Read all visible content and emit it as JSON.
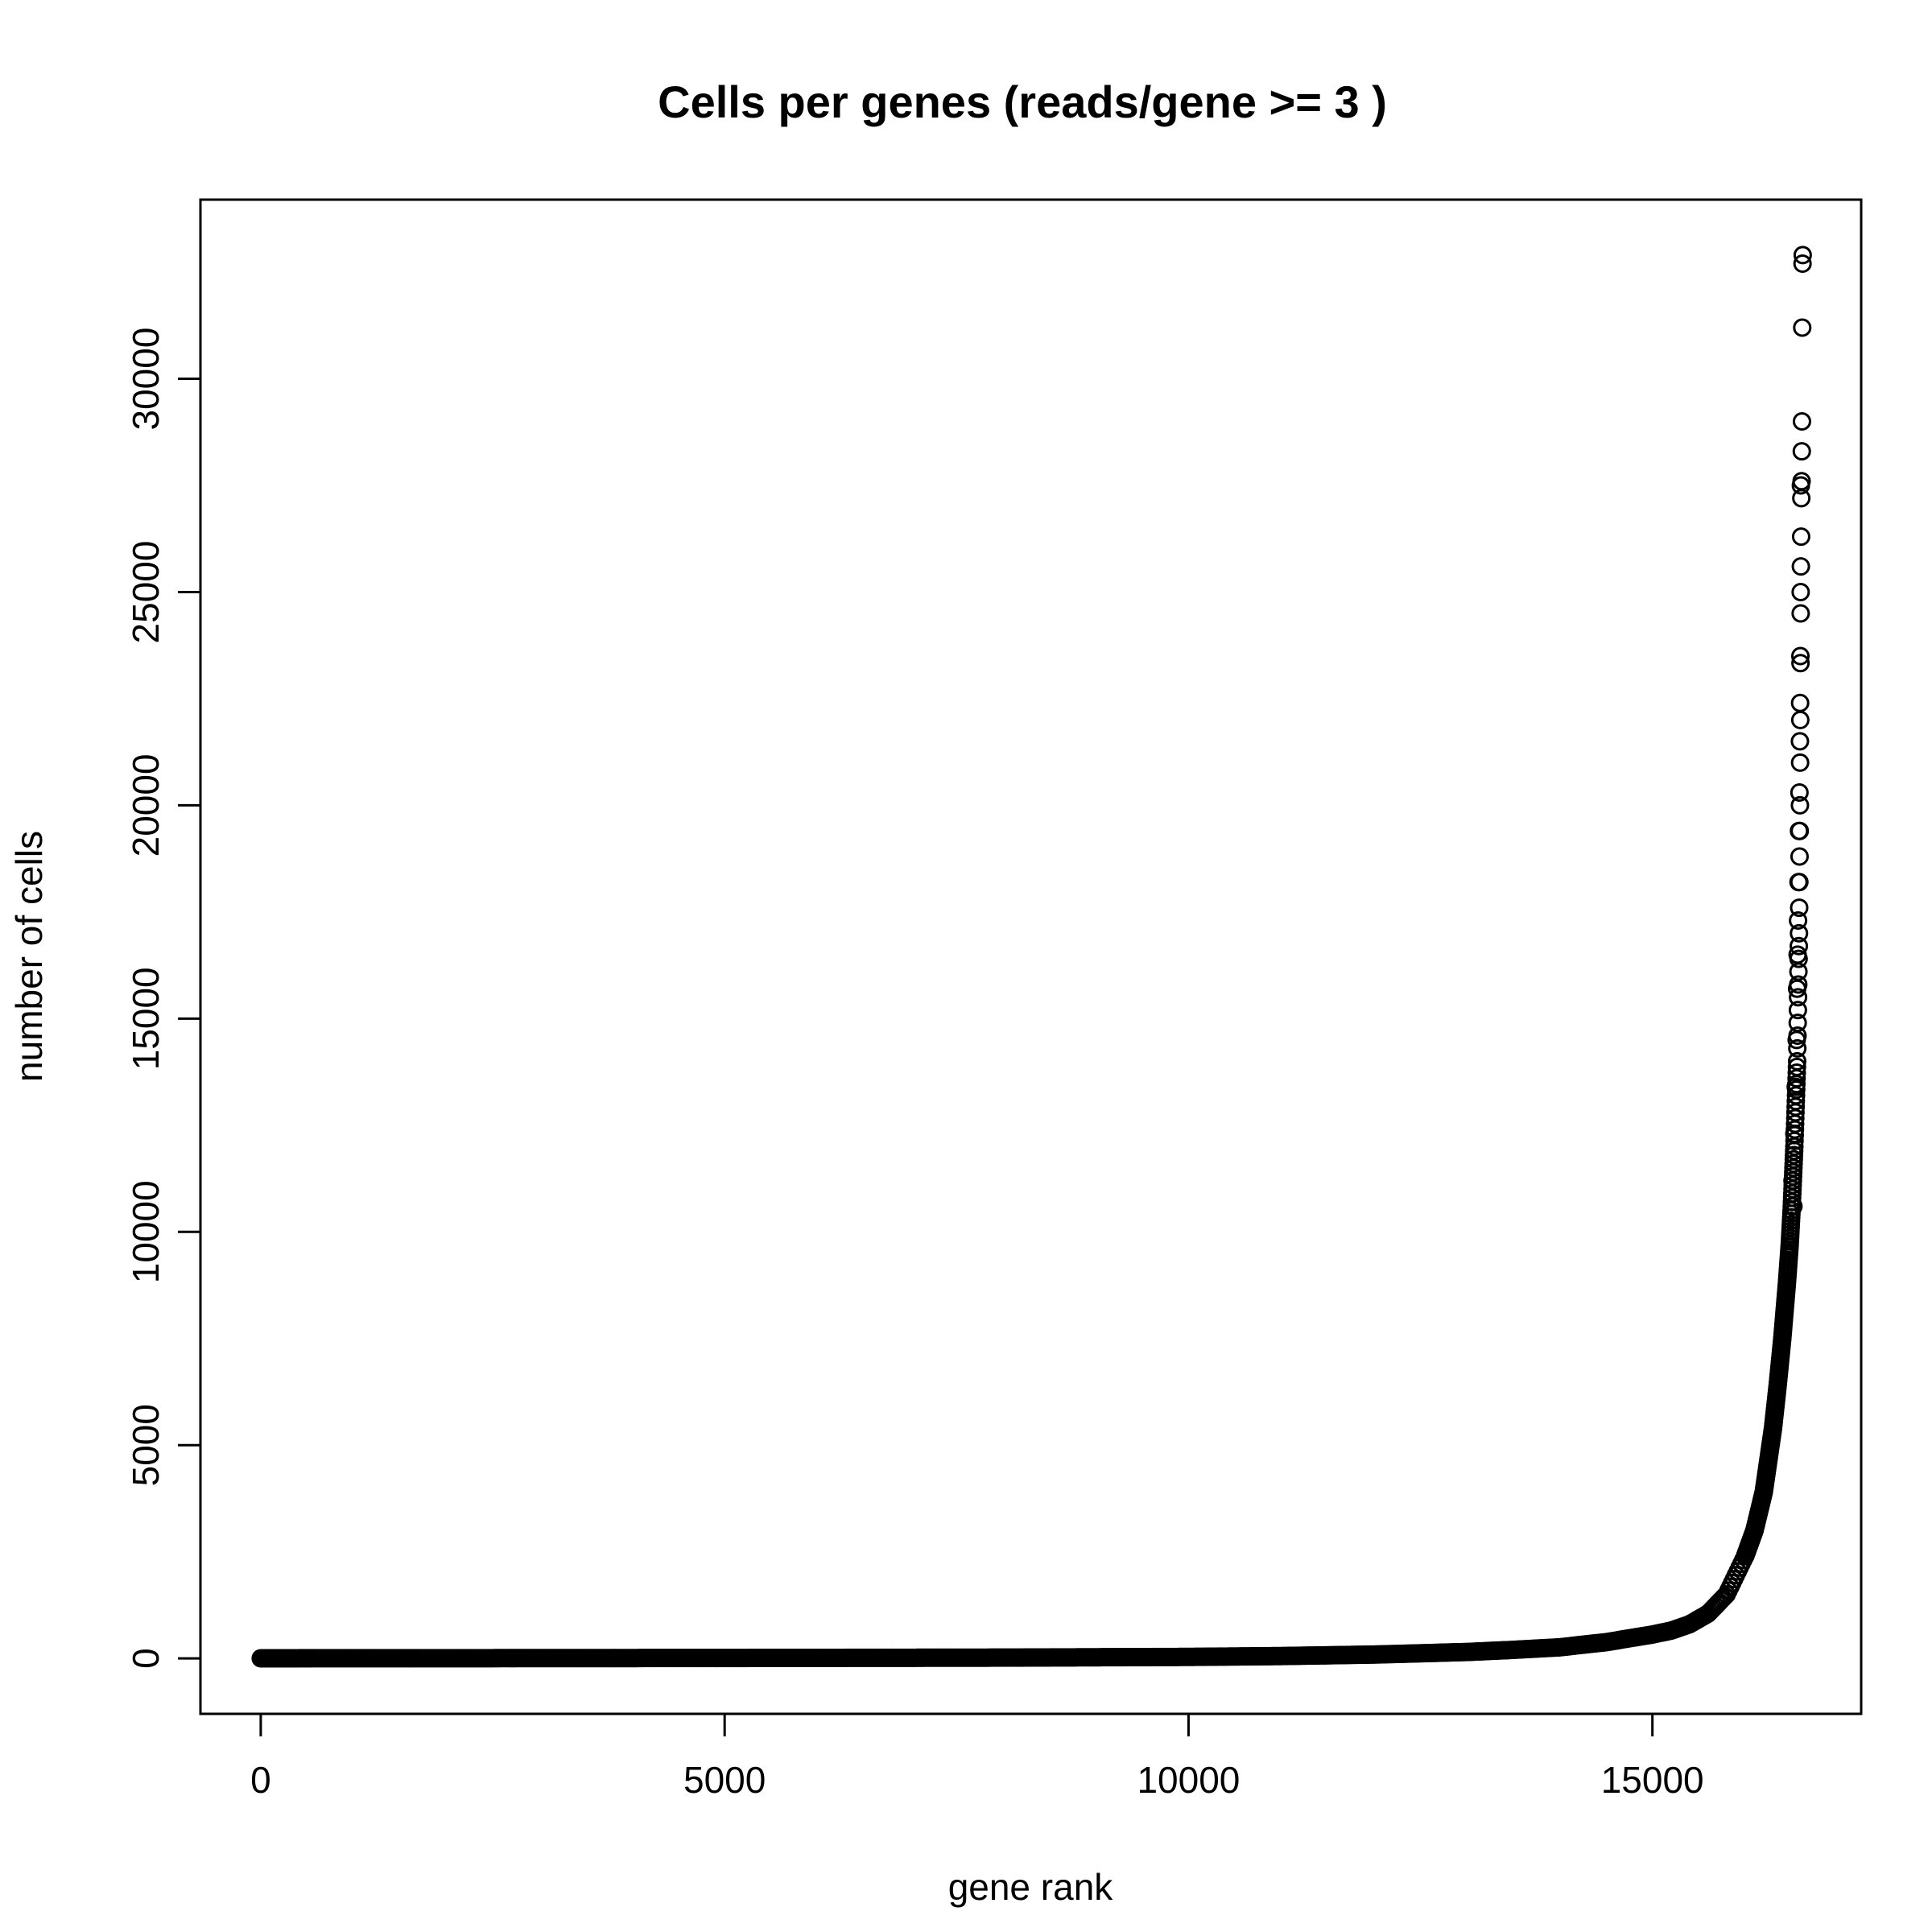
{
  "chart_data": {
    "type": "scatter",
    "title": "Cells per genes (reads/gene >= 3 )",
    "xlabel": "gene rank",
    "ylabel": "number of cells",
    "xlim": [
      -650,
      17250
    ],
    "ylim": [
      -1300,
      34200
    ],
    "x_ticks": [
      0,
      5000,
      10000,
      15000
    ],
    "x_tick_labels": [
      "0",
      "5000",
      "10000",
      "15000"
    ],
    "y_ticks": [
      0,
      5000,
      10000,
      15000,
      20000,
      25000,
      30000
    ],
    "y_tick_labels": [
      "0",
      "5000",
      "10000",
      "15000",
      "20000",
      "25000",
      "30000"
    ],
    "grid": false,
    "legend": "none",
    "marker": "open-circle",
    "marker_color": "#000000",
    "n_genes": 16600,
    "curve": [
      [
        0,
        3
      ],
      [
        2000,
        5
      ],
      [
        4000,
        8
      ],
      [
        6000,
        12
      ],
      [
        8000,
        18
      ],
      [
        10000,
        35
      ],
      [
        11000,
        55
      ],
      [
        12000,
        90
      ],
      [
        13000,
        150
      ],
      [
        13500,
        200
      ],
      [
        14000,
        260
      ],
      [
        14500,
        380
      ],
      [
        15000,
        560
      ],
      [
        15200,
        650
      ],
      [
        15400,
        800
      ],
      [
        15600,
        1050
      ],
      [
        15800,
        1500
      ],
      [
        16000,
        2400
      ],
      [
        16100,
        3000
      ],
      [
        16200,
        3900
      ],
      [
        16300,
        5400
      ],
      [
        16350,
        6400
      ],
      [
        16400,
        7500
      ],
      [
        16450,
        8800
      ],
      [
        16480,
        9700
      ],
      [
        16500,
        10500
      ],
      [
        16530,
        12000
      ],
      [
        16560,
        14000
      ],
      [
        16580,
        17000
      ],
      [
        16590,
        20000
      ],
      [
        16595,
        22500
      ],
      [
        16598,
        25000
      ],
      [
        16600,
        27500
      ]
    ],
    "outliers": [
      [
        16520,
        10600
      ],
      [
        16510,
        11200
      ],
      [
        16530,
        12300
      ],
      [
        16545,
        13400
      ],
      [
        16555,
        14500
      ],
      [
        16560,
        15700
      ],
      [
        16565,
        16500
      ],
      [
        16570,
        17300
      ],
      [
        16575,
        18200
      ],
      [
        16580,
        19400
      ],
      [
        16585,
        20300
      ],
      [
        16590,
        21500
      ],
      [
        16592,
        22400
      ],
      [
        16595,
        23500
      ],
      [
        16598,
        24500
      ],
      [
        16600,
        25600
      ],
      [
        16603,
        26300
      ],
      [
        16605,
        27200
      ],
      [
        16608,
        27600
      ],
      [
        16610,
        28300
      ],
      [
        16612,
        29000
      ],
      [
        16615,
        31200
      ],
      [
        16618,
        32700
      ],
      [
        16620,
        32900
      ]
    ]
  }
}
